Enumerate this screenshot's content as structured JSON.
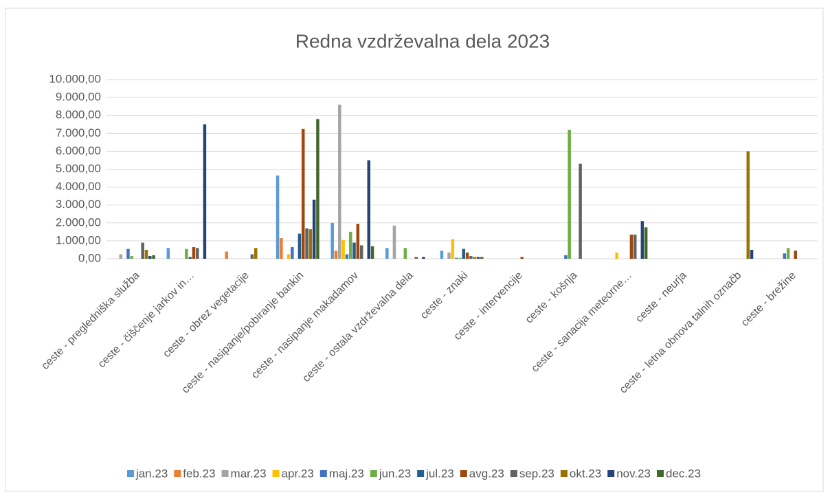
{
  "chart_data": {
    "type": "bar",
    "title": "Redna vzdrževalna dela 2023",
    "categories": [
      "ceste - pregledniška služba",
      "ceste - čiščenje jarkov in…",
      "ceste - obrez vegetacije",
      "ceste - nasipanje/pobiranje bankin",
      "ceste - nasipanje makadamov",
      "ceste - ostala vzdrževalna dela",
      "ceste - znaki",
      "ceste - intervencije",
      "ceste - košnja",
      "ceste - sanacija meteorne…",
      "ceste - neurja",
      "ceste - letna obnova talnih označb",
      "ceste - brežine"
    ],
    "series": [
      {
        "name": "jan.23",
        "color": "#5B9BD5",
        "values": [
          0,
          600,
          0,
          4650,
          2000,
          600,
          450,
          0,
          0,
          0,
          0,
          0,
          0
        ]
      },
      {
        "name": "feb.23",
        "color": "#ED7D31",
        "values": [
          0,
          0,
          400,
          1150,
          450,
          0,
          0,
          0,
          0,
          0,
          0,
          0,
          0
        ]
      },
      {
        "name": "mar.23",
        "color": "#A5A5A5",
        "values": [
          250,
          0,
          0,
          0,
          8600,
          1850,
          350,
          0,
          0,
          0,
          0,
          0,
          0
        ]
      },
      {
        "name": "apr.23",
        "color": "#FFC000",
        "values": [
          0,
          0,
          0,
          250,
          1050,
          0,
          1100,
          0,
          0,
          350,
          0,
          0,
          0
        ]
      },
      {
        "name": "maj.23",
        "color": "#4472C4",
        "values": [
          550,
          0,
          0,
          650,
          250,
          0,
          50,
          0,
          200,
          0,
          0,
          0,
          300
        ]
      },
      {
        "name": "jun.23",
        "color": "#70AD47",
        "values": [
          150,
          550,
          0,
          0,
          1500,
          600,
          50,
          0,
          7200,
          0,
          0,
          0,
          600
        ]
      },
      {
        "name": "jul.23",
        "color": "#255E91",
        "values": [
          0,
          100,
          0,
          1400,
          900,
          0,
          550,
          0,
          0,
          0,
          0,
          0,
          0
        ]
      },
      {
        "name": "avg.23",
        "color": "#9E480E",
        "values": [
          0,
          650,
          0,
          7250,
          1950,
          0,
          350,
          100,
          0,
          1350,
          0,
          0,
          450
        ]
      },
      {
        "name": "sep.23",
        "color": "#636363",
        "values": [
          900,
          600,
          250,
          1700,
          750,
          100,
          150,
          0,
          5300,
          1350,
          0,
          0,
          0
        ]
      },
      {
        "name": "okt.23",
        "color": "#997300",
        "values": [
          500,
          0,
          600,
          1650,
          0,
          0,
          100,
          0,
          0,
          0,
          0,
          6000,
          0
        ]
      },
      {
        "name": "nov.23",
        "color": "#264478",
        "values": [
          150,
          7500,
          0,
          3300,
          5500,
          100,
          100,
          0,
          0,
          2100,
          0,
          500,
          0
        ]
      },
      {
        "name": "dec.23",
        "color": "#43682B",
        "values": [
          200,
          0,
          0,
          7800,
          700,
          0,
          100,
          0,
          0,
          1750,
          0,
          0,
          0
        ]
      }
    ],
    "ylim": [
      0,
      10000
    ],
    "yticks": [
      {
        "value": 0,
        "label": "0,00"
      },
      {
        "value": 1000,
        "label": "1.000,00"
      },
      {
        "value": 2000,
        "label": "2.000,00"
      },
      {
        "value": 3000,
        "label": "3.000,00"
      },
      {
        "value": 4000,
        "label": "4.000,00"
      },
      {
        "value": 5000,
        "label": "5.000,00"
      },
      {
        "value": 6000,
        "label": "6.000,00"
      },
      {
        "value": 7000,
        "label": "7.000,00"
      },
      {
        "value": 8000,
        "label": "8.000,00"
      },
      {
        "value": 9000,
        "label": "9.000,00"
      },
      {
        "value": 10000,
        "label": "10.000,00"
      }
    ],
    "grid": true,
    "legend": "bottom"
  }
}
